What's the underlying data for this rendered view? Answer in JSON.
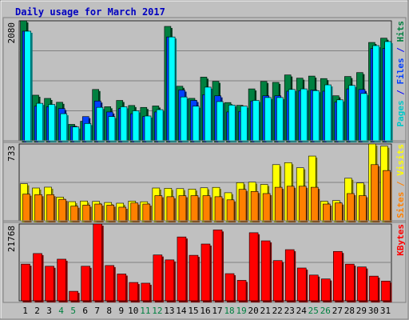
{
  "chart_data": {
    "type": "bar",
    "title": "Daily usage for March 2017",
    "categories": [
      "1",
      "2",
      "3",
      "4",
      "5",
      "6",
      "7",
      "8",
      "9",
      "10",
      "11",
      "12",
      "13",
      "14",
      "15",
      "16",
      "17",
      "18",
      "19",
      "20",
      "21",
      "22",
      "23",
      "24",
      "25",
      "26",
      "27",
      "28",
      "29",
      "30",
      "31"
    ],
    "weekend_days": [
      "4",
      "5",
      "11",
      "12",
      "18",
      "19",
      "25",
      "26"
    ],
    "panels": [
      {
        "id": "hits",
        "ymax_label": "2080",
        "ymax": 2080,
        "legend": [
          {
            "text": "Pages",
            "color": "#00c8c8"
          },
          {
            "text": " / ",
            "color": "#0000ff"
          },
          {
            "text": "Files",
            "color": "#0040ff"
          },
          {
            "text": " / ",
            "color": "#0000ff"
          },
          {
            "text": "Hits",
            "color": "#008040"
          }
        ],
        "series": [
          {
            "name": "Hits",
            "color": "#008040",
            "values": [
              2080,
              791,
              735,
              668,
              285,
              339,
              890,
              591,
              700,
              612,
              579,
              604,
              1983,
              946,
              736,
              1104,
              1031,
              663,
              615,
              900,
              1029,
              1013,
              1142,
              1086,
              1122,
              1079,
              781,
              1115,
              1183,
              1705,
              1779
            ]
          },
          {
            "name": "Files",
            "color": "#0040ff",
            "values": [
              1900,
              600,
              590,
              560,
              250,
              420,
              690,
              500,
              560,
              470,
              420,
              500,
              1800,
              880,
              700,
              800,
              780,
              500,
              510,
              690,
              780,
              780,
              860,
              870,
              880,
              860,
              670,
              900,
              890,
              1600,
              1600
            ]
          },
          {
            "name": "Pages",
            "color": "#00ffff",
            "values": [
              1900,
              650,
              630,
              470,
              240,
              300,
              580,
              420,
              590,
              520,
              430,
              540,
              1800,
              760,
              600,
              930,
              680,
              620,
              600,
              700,
              750,
              750,
              890,
              900,
              870,
              970,
              710,
              960,
              820,
              1650,
              1720
            ]
          }
        ]
      },
      {
        "id": "visits",
        "ymax_label": "733",
        "ymax": 733,
        "legend": [
          {
            "text": "Sites",
            "color": "#ff8000"
          },
          {
            "text": " / ",
            "color": "#ff8000"
          },
          {
            "text": "Visits",
            "color": "#ffff00"
          }
        ],
        "series": [
          {
            "name": "Visits",
            "color": "#ffff00",
            "values": [
              354,
              313,
              321,
              226,
              183,
              189,
              185,
              175,
              168,
              188,
              182,
              313,
              310,
              307,
              303,
              315,
              319,
              268,
              364,
              369,
              347,
              536,
              555,
              506,
              618,
              187,
              193,
              406,
              361,
              733,
              713
            ]
          },
          {
            "name": "Sites",
            "color": "#ff8000",
            "values": [
              255,
              250,
              250,
              205,
              140,
              150,
              160,
              150,
              130,
              170,
              160,
              240,
              230,
              240,
              240,
              240,
              230,
              200,
              300,
              280,
              260,
              320,
              330,
              330,
              320,
              160,
              170,
              260,
              240,
              536,
              480
            ]
          }
        ]
      },
      {
        "id": "kbytes",
        "ymax_label": "21768",
        "ymax": 21768,
        "legend": [
          {
            "text": "KBytes",
            "color": "#ff0000"
          }
        ],
        "series": [
          {
            "name": "KBytes",
            "color": "#ff0000",
            "values": [
              10400,
              13400,
              9800,
              11800,
              2700,
              9800,
              21768,
              10000,
              7600,
              5200,
              5000,
              13000,
              11600,
              18100,
              12900,
              16100,
              20100,
              7700,
              5800,
              19300,
              17000,
              11400,
              14500,
              9300,
              7300,
              6200,
              14000,
              10400,
              9600,
              7000,
              5600
            ]
          }
        ]
      }
    ],
    "xlabel": "",
    "ylabel": ""
  }
}
